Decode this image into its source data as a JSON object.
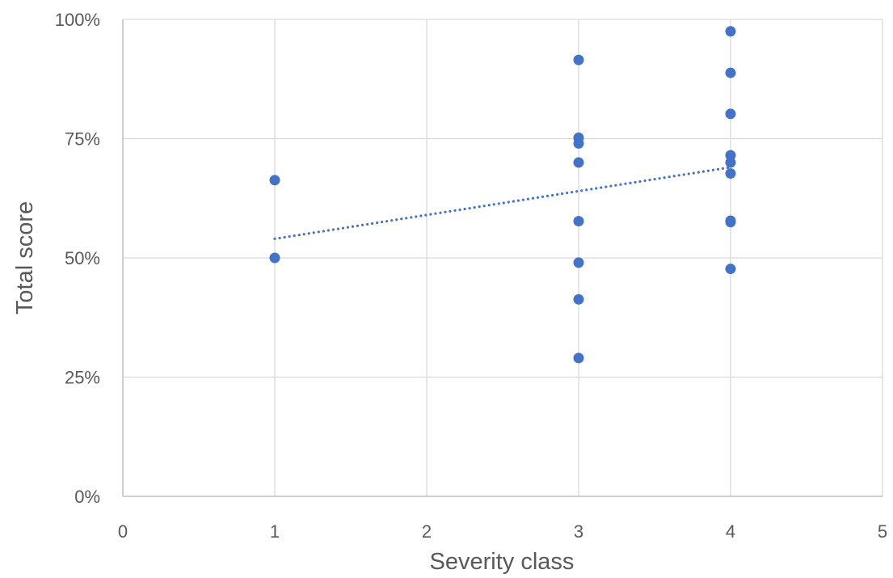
{
  "chart_data": {
    "type": "scatter",
    "title": "",
    "xlabel": "Severity class",
    "ylabel": "Total score",
    "xlim": [
      0,
      5
    ],
    "ylim": [
      0,
      1
    ],
    "x_ticks": [
      0,
      1,
      2,
      3,
      4,
      5
    ],
    "x_tick_labels": [
      "0",
      "1",
      "2",
      "3",
      "4",
      "5"
    ],
    "y_ticks": [
      0,
      0.25,
      0.5,
      0.75,
      1.0
    ],
    "y_tick_labels": [
      "0%",
      "25%",
      "50%",
      "75%",
      "100%"
    ],
    "grid": true,
    "legend": "none",
    "series": [
      {
        "color": "#4472C4",
        "points": [
          {
            "x": 1,
            "y": 0.663
          },
          {
            "x": 1,
            "y": 0.5
          },
          {
            "x": 3,
            "y": 0.915
          },
          {
            "x": 3,
            "y": 0.752
          },
          {
            "x": 3,
            "y": 0.74
          },
          {
            "x": 3,
            "y": 0.7
          },
          {
            "x": 3,
            "y": 0.577
          },
          {
            "x": 3,
            "y": 0.49
          },
          {
            "x": 3,
            "y": 0.413
          },
          {
            "x": 3,
            "y": 0.29
          },
          {
            "x": 4,
            "y": 0.975
          },
          {
            "x": 4,
            "y": 0.888
          },
          {
            "x": 4,
            "y": 0.802
          },
          {
            "x": 4,
            "y": 0.715
          },
          {
            "x": 4,
            "y": 0.7
          },
          {
            "x": 4,
            "y": 0.677
          },
          {
            "x": 4,
            "y": 0.578
          },
          {
            "x": 4,
            "y": 0.575
          },
          {
            "x": 4,
            "y": 0.477
          }
        ]
      }
    ],
    "trendline": {
      "type": "linear",
      "style": "dotted",
      "color": "#4472C4",
      "x_range": [
        1,
        4
      ],
      "y_range": [
        0.54,
        0.69
      ]
    }
  }
}
